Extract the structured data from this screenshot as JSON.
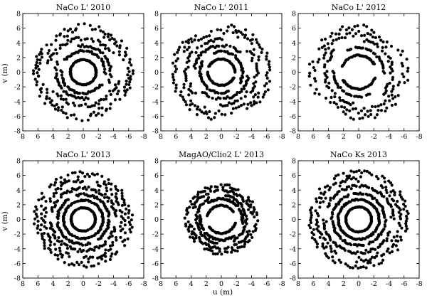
{
  "figure": {
    "xlabel": "u (m)",
    "ylabel": "v (m)"
  },
  "chart_data": [
    {
      "type": "scatter",
      "title": "NaCo L' 2010",
      "xlabel": "u (m)",
      "ylabel": "v (m)",
      "xlim": [
        8,
        -8
      ],
      "ylim": [
        -8,
        8
      ],
      "xticks": [
        8,
        6,
        4,
        2,
        0,
        -2,
        -4,
        -6,
        -8
      ],
      "yticks": [
        8,
        6,
        4,
        2,
        0,
        -2,
        -4,
        -6,
        -8
      ],
      "grid": false,
      "marker_color": "#000000",
      "rings": [
        {
          "radius": 1.7,
          "points": 48,
          "coverage": 1.0,
          "phase": 10,
          "jitter": 0.03
        },
        {
          "radius": 2.9,
          "points": 38,
          "coverage": 0.85,
          "phase": 35,
          "jitter": 0.05
        },
        {
          "radius": 3.6,
          "points": 30,
          "coverage": 0.7,
          "phase": 80,
          "jitter": 0.05
        },
        {
          "radius": 4.6,
          "points": 38,
          "coverage": 0.75,
          "phase": 15,
          "jitter": 0.07
        },
        {
          "radius": 5.7,
          "points": 34,
          "coverage": 0.8,
          "phase": 120,
          "jitter": 0.07
        },
        {
          "radius": 6.3,
          "points": 44,
          "coverage": 0.85,
          "phase": 60,
          "jitter": 0.06
        }
      ]
    },
    {
      "type": "scatter",
      "title": "NaCo L' 2011",
      "xlabel": "u (m)",
      "ylabel": "v (m)",
      "xlim": [
        8,
        -8
      ],
      "ylim": [
        -8,
        8
      ],
      "xticks": [
        8,
        6,
        4,
        2,
        0,
        -2,
        -4,
        -6,
        -8
      ],
      "yticks": [
        8,
        6,
        4,
        2,
        0,
        -2,
        -4,
        -6,
        -8
      ],
      "grid": false,
      "marker_color": "#000000",
      "rings": [
        {
          "radius": 1.8,
          "points": 46,
          "coverage": 0.9,
          "phase": 25,
          "jitter": 0.03
        },
        {
          "radius": 2.8,
          "points": 36,
          "coverage": 0.8,
          "phase": 70,
          "jitter": 0.05
        },
        {
          "radius": 3.6,
          "points": 34,
          "coverage": 0.75,
          "phase": 5,
          "jitter": 0.05
        },
        {
          "radius": 4.6,
          "points": 36,
          "coverage": 0.75,
          "phase": 140,
          "jitter": 0.07
        },
        {
          "radius": 5.6,
          "points": 34,
          "coverage": 0.8,
          "phase": 30,
          "jitter": 0.07
        },
        {
          "radius": 6.3,
          "points": 42,
          "coverage": 0.8,
          "phase": 95,
          "jitter": 0.06
        }
      ]
    },
    {
      "type": "scatter",
      "title": "NaCo L' 2012",
      "xlabel": "u (m)",
      "ylabel": "v (m)",
      "xlim": [
        8,
        -8
      ],
      "ylim": [
        -8,
        8
      ],
      "xticks": [
        8,
        6,
        4,
        2,
        0,
        -2,
        -4,
        -6,
        -8
      ],
      "yticks": [
        8,
        6,
        4,
        2,
        0,
        -2,
        -4,
        -6,
        -8
      ],
      "grid": false,
      "marker_color": "#000000",
      "rings": [
        {
          "radius": 2.3,
          "points": 40,
          "coverage": 0.75,
          "phase": 20,
          "jitter": 0.03
        },
        {
          "radius": 3.3,
          "points": 32,
          "coverage": 0.7,
          "phase": 60,
          "jitter": 0.04
        },
        {
          "radius": 4.4,
          "points": 34,
          "coverage": 0.7,
          "phase": 100,
          "jitter": 0.06
        },
        {
          "radius": 5.3,
          "points": 32,
          "coverage": 0.75,
          "phase": 10,
          "jitter": 0.07
        },
        {
          "radius": 6.2,
          "points": 40,
          "coverage": 0.8,
          "phase": 150,
          "jitter": 0.07
        }
      ]
    },
    {
      "type": "scatter",
      "title": "NaCo L' 2013",
      "xlabel": "u (m)",
      "ylabel": "v (m)",
      "xlim": [
        8,
        -8
      ],
      "ylim": [
        -8,
        8
      ],
      "xticks": [
        8,
        6,
        4,
        2,
        0,
        -2,
        -4,
        -6,
        -8
      ],
      "yticks": [
        8,
        6,
        4,
        2,
        0,
        -2,
        -4,
        -6,
        -8
      ],
      "grid": false,
      "marker_color": "#000000",
      "rings": [
        {
          "radius": 1.6,
          "points": 60,
          "coverage": 1.0,
          "phase": 0,
          "jitter": 0.02
        },
        {
          "radius": 2.6,
          "points": 56,
          "coverage": 1.0,
          "phase": 30,
          "jitter": 0.03
        },
        {
          "radius": 3.4,
          "points": 50,
          "coverage": 0.9,
          "phase": 75,
          "jitter": 0.04
        },
        {
          "radius": 4.3,
          "points": 52,
          "coverage": 0.9,
          "phase": 15,
          "jitter": 0.05
        },
        {
          "radius": 5.3,
          "points": 52,
          "coverage": 0.9,
          "phase": 110,
          "jitter": 0.06
        },
        {
          "radius": 6.2,
          "points": 58,
          "coverage": 0.95,
          "phase": 45,
          "jitter": 0.06
        }
      ]
    },
    {
      "type": "scatter",
      "title": "MagAO/Clio2 L' 2013",
      "xlabel": "u (m)",
      "ylabel": "v (m)",
      "xlim": [
        8,
        -8
      ],
      "ylim": [
        -8,
        8
      ],
      "xticks": [
        8,
        6,
        4,
        2,
        0,
        -2,
        -4,
        -6,
        -8
      ],
      "yticks": [
        8,
        6,
        4,
        2,
        0,
        -2,
        -4,
        -6,
        -8
      ],
      "grid": false,
      "marker_color": "#000000",
      "rings": [
        {
          "radius": 1.9,
          "points": 40,
          "coverage": 0.75,
          "phase": 15,
          "jitter": 0.03
        },
        {
          "radius": 2.8,
          "points": 42,
          "coverage": 0.8,
          "phase": 50,
          "jitter": 0.04
        },
        {
          "radius": 3.3,
          "points": 40,
          "coverage": 0.8,
          "phase": 100,
          "jitter": 0.04
        },
        {
          "radius": 4.0,
          "points": 46,
          "coverage": 0.85,
          "phase": 20,
          "jitter": 0.05
        },
        {
          "radius": 4.6,
          "points": 50,
          "coverage": 0.9,
          "phase": 140,
          "jitter": 0.05
        }
      ]
    },
    {
      "type": "scatter",
      "title": "NaCo Ks 2013",
      "xlabel": "u (m)",
      "ylabel": "v (m)",
      "xlim": [
        8,
        -8
      ],
      "ylim": [
        -8,
        8
      ],
      "xticks": [
        8,
        6,
        4,
        2,
        0,
        -2,
        -4,
        -6,
        -8
      ],
      "yticks": [
        8,
        6,
        4,
        2,
        0,
        -2,
        -4,
        -6,
        -8
      ],
      "grid": false,
      "marker_color": "#000000",
      "rings": [
        {
          "radius": 1.7,
          "points": 60,
          "coverage": 1.0,
          "phase": 5,
          "jitter": 0.02
        },
        {
          "radius": 2.7,
          "points": 56,
          "coverage": 1.0,
          "phase": 40,
          "jitter": 0.03
        },
        {
          "radius": 3.5,
          "points": 52,
          "coverage": 0.95,
          "phase": 80,
          "jitter": 0.04
        },
        {
          "radius": 4.5,
          "points": 54,
          "coverage": 0.9,
          "phase": 20,
          "jitter": 0.05
        },
        {
          "radius": 5.5,
          "points": 52,
          "coverage": 0.9,
          "phase": 120,
          "jitter": 0.06
        },
        {
          "radius": 6.3,
          "points": 56,
          "coverage": 0.95,
          "phase": 60,
          "jitter": 0.06
        }
      ]
    }
  ]
}
